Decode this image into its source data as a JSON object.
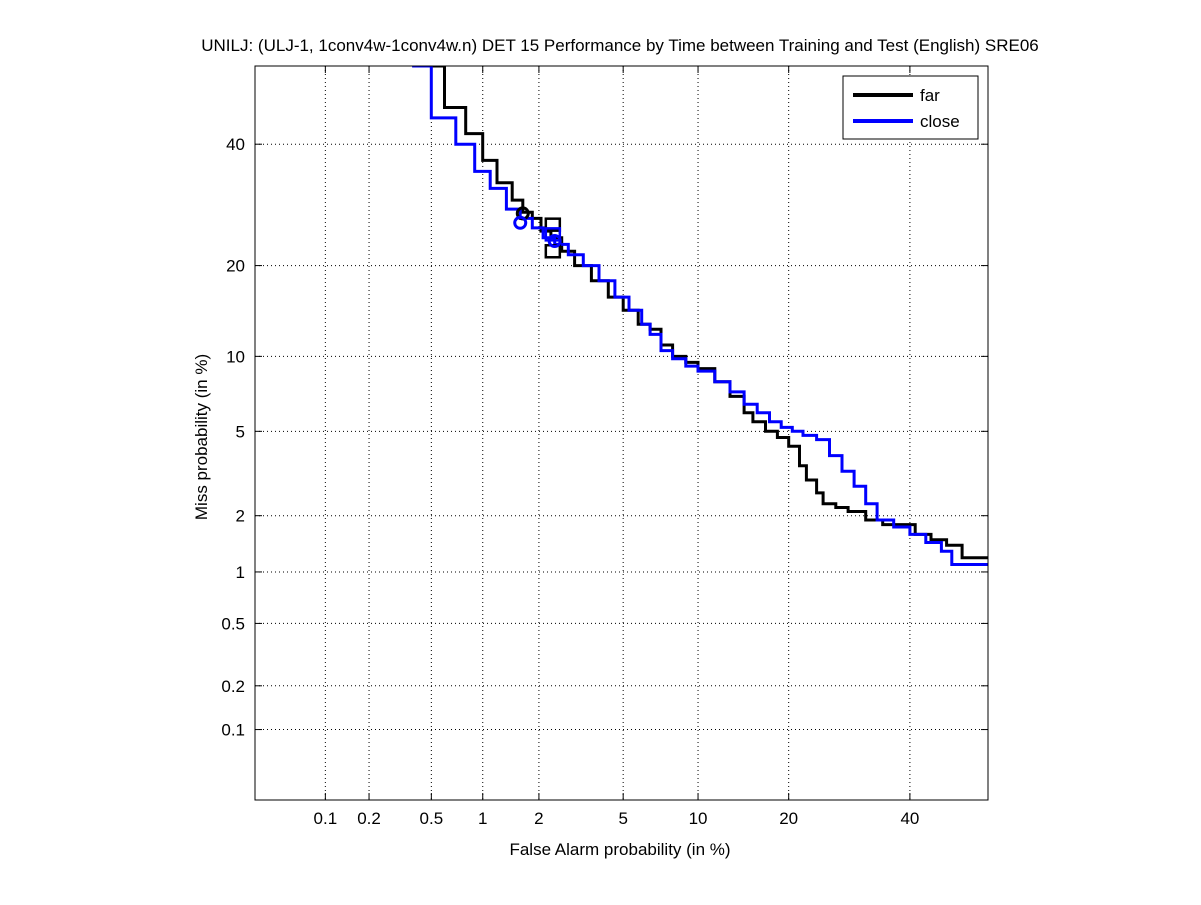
{
  "chart_data": {
    "type": "line",
    "title": "UNILJ: (ULJ-1, 1conv4w-1conv4w.n) DET 15 Performance by Time between Training and Test (English) SRE06",
    "xlabel": "False Alarm probability (in %)",
    "ylabel": "Miss probability (in %)",
    "xscale": "probit",
    "yscale": "probit",
    "xlim": [
      0.03,
      55
    ],
    "ylim": [
      0.03,
      55
    ],
    "x_ticks": [
      0.1,
      0.2,
      0.5,
      1,
      2,
      5,
      10,
      20,
      40
    ],
    "x_tick_labels": [
      "0.1",
      "0.2",
      "0.5",
      "1",
      "2",
      "5",
      "10",
      "20",
      "40"
    ],
    "y_ticks": [
      0.1,
      0.2,
      0.5,
      1,
      2,
      5,
      10,
      20,
      40
    ],
    "y_tick_labels": [
      "0.1",
      "0.2",
      "0.5",
      "1",
      "2",
      "5",
      "10",
      "20",
      "40"
    ],
    "grid": true,
    "legend_position": "top-right",
    "series": [
      {
        "name": "far",
        "color": "#000000",
        "x": [
          0.45,
          0.6,
          0.8,
          1.0,
          1.2,
          1.45,
          1.65,
          1.85,
          2.05,
          2.3,
          2.6,
          3.0,
          3.6,
          4.3,
          5.0,
          5.8,
          6.5,
          7.2,
          8.0,
          9.0,
          10.0,
          11.5,
          13.0,
          14.5,
          15.5,
          17.0,
          18.5,
          20.0,
          21.5,
          22.5,
          24.0,
          25.0,
          27.0,
          29.0,
          32.0,
          35.0,
          38.0,
          41.0,
          44.0,
          47.0,
          50.0,
          55.0
        ],
        "y": [
          55.0,
          47.0,
          42.0,
          37.0,
          33.0,
          30.0,
          28.0,
          27.0,
          25.0,
          24.0,
          22.0,
          20.0,
          18.0,
          16.0,
          14.5,
          13.0,
          12.5,
          11.0,
          10.0,
          9.5,
          9.0,
          8.0,
          7.0,
          6.0,
          5.5,
          5.0,
          4.7,
          4.3,
          3.5,
          3.0,
          2.6,
          2.3,
          2.2,
          2.1,
          1.9,
          1.8,
          1.8,
          1.6,
          1.5,
          1.4,
          1.2,
          1.2
        ]
      },
      {
        "name": "close",
        "color": "#0000ff",
        "x": [
          0.38,
          0.5,
          0.7,
          0.9,
          1.1,
          1.35,
          1.6,
          1.85,
          2.1,
          2.4,
          2.8,
          3.3,
          3.9,
          4.6,
          5.3,
          6.0,
          6.5,
          7.2,
          8.0,
          9.0,
          10.0,
          11.5,
          13.0,
          14.5,
          16.0,
          17.5,
          19.0,
          20.5,
          22.0,
          24.0,
          26.0,
          28.0,
          30.0,
          32.0,
          34.0,
          37.0,
          40.0,
          43.0,
          46.0,
          48.0,
          55.0
        ],
        "y": [
          55.0,
          45.0,
          40.0,
          35.0,
          32.0,
          28.5,
          27.0,
          25.5,
          24.0,
          23.0,
          21.5,
          20.0,
          18.0,
          16.0,
          14.5,
          13.0,
          12.0,
          10.5,
          9.8,
          9.2,
          8.8,
          8.0,
          7.3,
          6.5,
          6.0,
          5.5,
          5.2,
          5.0,
          4.8,
          4.6,
          3.9,
          3.3,
          2.8,
          2.3,
          1.9,
          1.75,
          1.6,
          1.45,
          1.3,
          1.1,
          1.1
        ]
      }
    ],
    "markers": [
      {
        "series": "far",
        "shape": "circle",
        "x": 1.65,
        "y": 27.8
      },
      {
        "series": "far",
        "shape": "square",
        "x": 2.35,
        "y": 26.0
      },
      {
        "series": "far",
        "shape": "square",
        "x": 2.35,
        "y": 22.0
      },
      {
        "series": "close",
        "shape": "circle",
        "x": 1.6,
        "y": 26.3
      },
      {
        "series": "close",
        "shape": "circle",
        "x": 2.4,
        "y": 23.5
      },
      {
        "series": "close",
        "shape": "square",
        "x": 2.35,
        "y": 24.5
      }
    ]
  }
}
